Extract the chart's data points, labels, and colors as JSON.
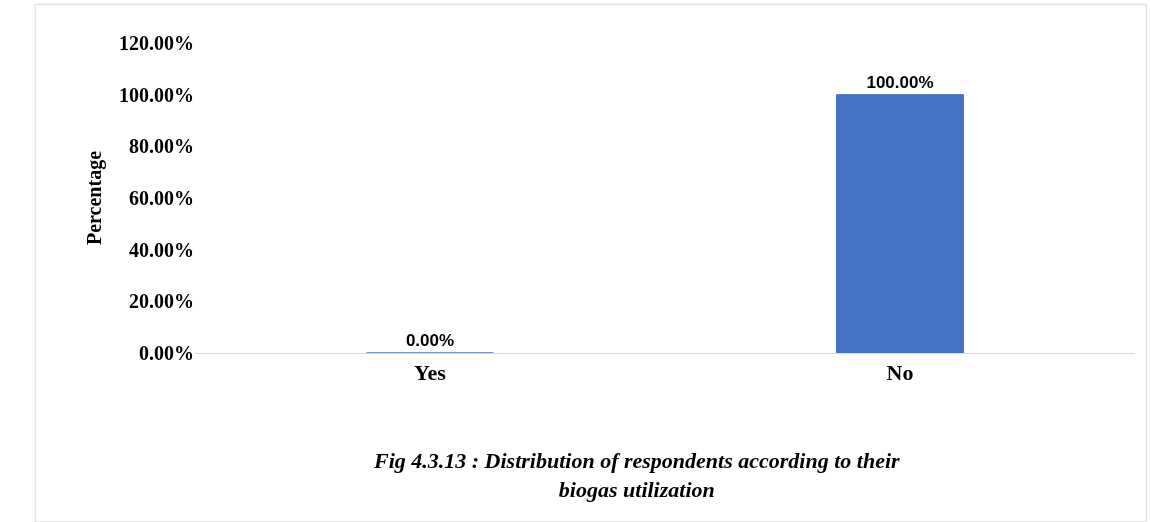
{
  "chart_data": {
    "type": "bar",
    "title": "Fig 4.3.13 : Distribution of respondents according to their\nbiogas utilization",
    "ylabel": "Percentage",
    "categories": [
      "Yes",
      "No"
    ],
    "values": [
      0,
      100
    ],
    "value_labels": [
      "0.00%",
      "100.00%"
    ],
    "color": "#4472c4",
    "ylim": [
      0,
      120
    ],
    "yticks": [
      {
        "value": 0,
        "label": "0.00%"
      },
      {
        "value": 20,
        "label": "20.00%"
      },
      {
        "value": 40,
        "label": "40.00%"
      },
      {
        "value": 60,
        "label": "60.00%"
      },
      {
        "value": 80,
        "label": "80.00%"
      },
      {
        "value": 100,
        "label": "100.00%"
      },
      {
        "value": 120,
        "label": "120.00%"
      }
    ],
    "legend": false
  }
}
